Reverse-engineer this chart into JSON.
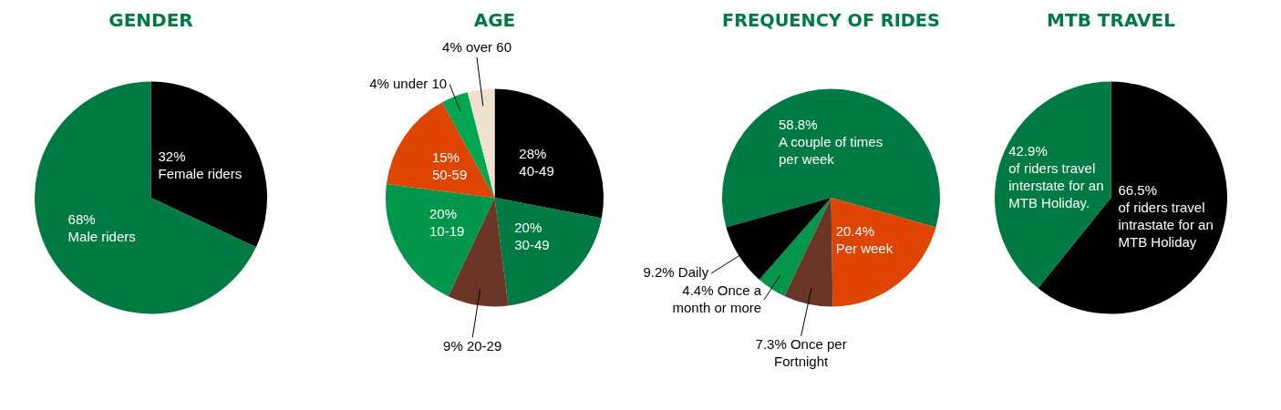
{
  "chart_data": [
    {
      "type": "pie",
      "title": "GENDER",
      "categories": [
        "Female riders",
        "Male riders"
      ],
      "values": [
        32,
        68
      ],
      "colors": [
        "#000000",
        "#007a43"
      ],
      "value_labels": [
        "32%",
        "68%"
      ]
    },
    {
      "type": "pie",
      "title": "AGE",
      "categories": [
        "40-49",
        "30-49",
        "20-29",
        "10-19",
        "50-59",
        "under 10",
        "over 60"
      ],
      "values": [
        28,
        20,
        9,
        20,
        15,
        4,
        4
      ],
      "colors": [
        "#000000",
        "#007a43",
        "#6b3527",
        "#00964b",
        "#e04403",
        "#00a651",
        "#efe0cf"
      ],
      "value_labels": [
        "28%",
        "20%",
        "9%",
        "20%",
        "15%",
        "4%",
        "4%"
      ]
    },
    {
      "type": "pie",
      "title": "FREQUENCY OF RIDES",
      "categories": [
        "A couple of times per week",
        "Per week",
        "Once per Fortnight",
        "Once a month or more",
        "Daily"
      ],
      "values": [
        58.8,
        20.4,
        7.3,
        4.4,
        9.2
      ],
      "colors": [
        "#007a43",
        "#e04403",
        "#6b3527",
        "#00964b",
        "#000000"
      ],
      "value_labels": [
        "58.8%",
        "20.4%",
        "7.3%",
        "4.4%",
        "9.2%"
      ]
    },
    {
      "type": "pie",
      "title": "MTB TRAVEL",
      "categories": [
        "of riders travel intrastate for an MTB Holiday",
        "of riders travel interstate for an MTB Holiday."
      ],
      "values": [
        66.5,
        42.9
      ],
      "colors": [
        "#000000",
        "#007a43"
      ],
      "value_labels": [
        "66.5%",
        "42.9%"
      ]
    }
  ]
}
